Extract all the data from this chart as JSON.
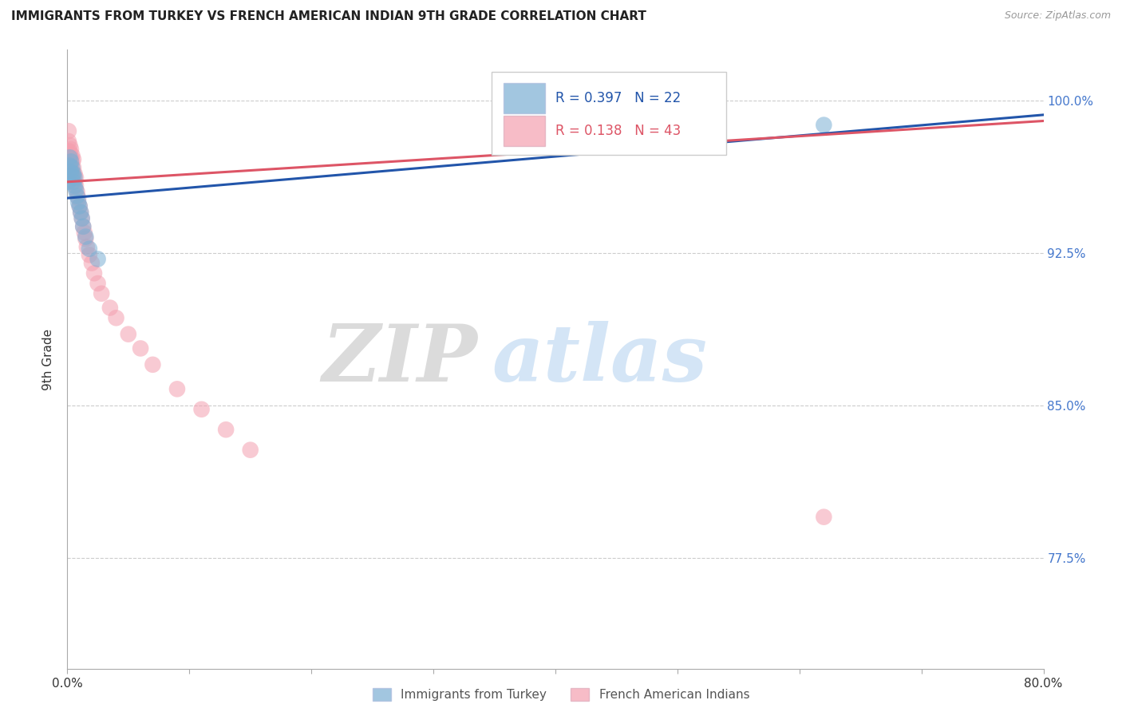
{
  "title": "IMMIGRANTS FROM TURKEY VS FRENCH AMERICAN INDIAN 9TH GRADE CORRELATION CHART",
  "source": "Source: ZipAtlas.com",
  "ylabel": "9th Grade",
  "ylabel_right_labels": [
    "100.0%",
    "92.5%",
    "85.0%",
    "77.5%"
  ],
  "ylabel_right_values": [
    1.0,
    0.925,
    0.85,
    0.775
  ],
  "xmin": 0.0,
  "xmax": 0.8,
  "ymin": 0.72,
  "ymax": 1.025,
  "legend_blue_r": "R = 0.397",
  "legend_blue_n": "N = 22",
  "legend_pink_r": "R = 0.138",
  "legend_pink_n": "N = 43",
  "blue_color": "#7BAFD4",
  "pink_color": "#F4A0B0",
  "blue_line_color": "#2255AA",
  "pink_line_color": "#DD5566",
  "watermark_zip": "ZIP",
  "watermark_atlas": "atlas",
  "blue_scatter_x": [
    0.001,
    0.002,
    0.002,
    0.003,
    0.003,
    0.004,
    0.004,
    0.005,
    0.005,
    0.006,
    0.006,
    0.007,
    0.008,
    0.009,
    0.01,
    0.011,
    0.012,
    0.013,
    0.015,
    0.018,
    0.025,
    0.62
  ],
  "blue_scatter_y": [
    0.96,
    0.968,
    0.972,
    0.965,
    0.97,
    0.963,
    0.967,
    0.96,
    0.964,
    0.958,
    0.962,
    0.956,
    0.953,
    0.95,
    0.948,
    0.945,
    0.942,
    0.938,
    0.933,
    0.927,
    0.922,
    0.988
  ],
  "pink_scatter_x": [
    0.001,
    0.001,
    0.001,
    0.002,
    0.002,
    0.002,
    0.003,
    0.003,
    0.003,
    0.004,
    0.004,
    0.004,
    0.005,
    0.005,
    0.005,
    0.006,
    0.006,
    0.007,
    0.007,
    0.008,
    0.009,
    0.01,
    0.011,
    0.012,
    0.013,
    0.014,
    0.015,
    0.016,
    0.018,
    0.02,
    0.022,
    0.025,
    0.028,
    0.035,
    0.04,
    0.05,
    0.06,
    0.07,
    0.09,
    0.11,
    0.13,
    0.15,
    0.62
  ],
  "pink_scatter_y": [
    0.975,
    0.98,
    0.985,
    0.97,
    0.975,
    0.978,
    0.968,
    0.972,
    0.976,
    0.965,
    0.97,
    0.973,
    0.963,
    0.967,
    0.971,
    0.96,
    0.964,
    0.958,
    0.962,
    0.955,
    0.952,
    0.948,
    0.945,
    0.942,
    0.938,
    0.935,
    0.932,
    0.928,
    0.924,
    0.92,
    0.915,
    0.91,
    0.905,
    0.898,
    0.893,
    0.885,
    0.878,
    0.87,
    0.858,
    0.848,
    0.838,
    0.828,
    0.795
  ],
  "blue_trend_x": [
    0.0,
    0.8
  ],
  "blue_trend_y": [
    0.952,
    0.993
  ],
  "pink_trend_x": [
    0.0,
    0.8
  ],
  "pink_trend_y": [
    0.96,
    0.99
  ]
}
